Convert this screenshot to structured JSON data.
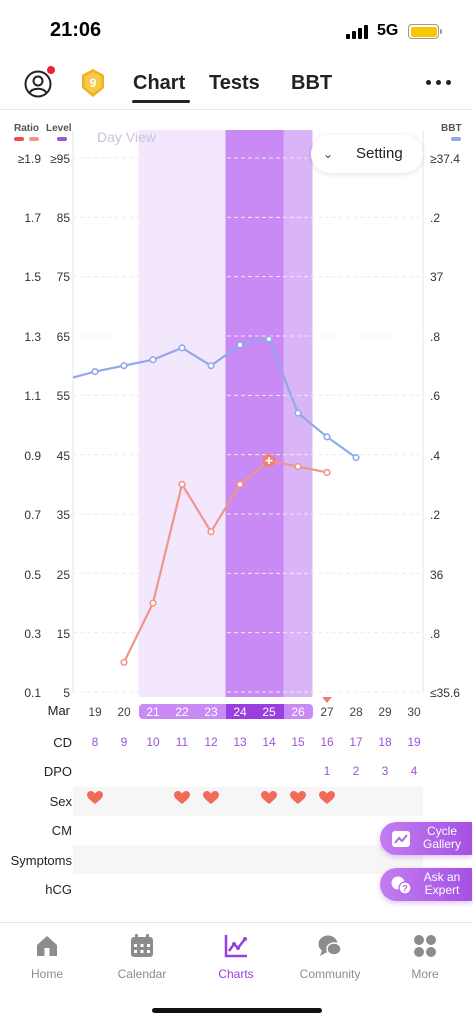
{
  "status_bar": {
    "time": "21:06",
    "network": "5G"
  },
  "top_nav": {
    "tabs": [
      "Chart",
      "Tests",
      "BBT"
    ],
    "active_tab": "Chart",
    "badge_level": "9"
  },
  "axis_heads": {
    "ratio": "Ratio",
    "level": "Level",
    "bbt": "BBT"
  },
  "colors": {
    "ratio": "#f0958a",
    "level": "#9b55d6",
    "bbt": "#8fa9ea",
    "fertile_light": "#f2e7fd",
    "fertile_dark": "#d9b5f7",
    "ovulation": "#c98af5"
  },
  "day_view": "Day View",
  "setting": "Setting",
  "ratio_labels": [
    "≥1.9",
    "1.7",
    "1.5",
    "1.3",
    "1.1",
    "0.9",
    "0.7",
    "0.5",
    "0.3",
    "0.1"
  ],
  "level_labels": [
    "≥95",
    "85",
    "75",
    "65",
    "55",
    "45",
    "35",
    "25",
    "15",
    "5"
  ],
  "bbt_labels": [
    "≥37.4",
    ".2",
    "37",
    ".8",
    ".6",
    ".4",
    ".2",
    "36",
    ".8",
    "≤35.6"
  ],
  "month": "Mar",
  "dates": [
    "19",
    "20",
    "21",
    "22",
    "23",
    "24",
    "25",
    "26",
    "27",
    "28",
    "29",
    "30"
  ],
  "cd": [
    "8",
    "9",
    "10",
    "11",
    "12",
    "13",
    "14",
    "15",
    "16",
    "17",
    "18",
    "19"
  ],
  "dpo": [
    "",
    "",
    "",
    "",
    "",
    "",
    "",
    "",
    "1",
    "2",
    "3",
    "4"
  ],
  "sex": [
    true,
    false,
    false,
    true,
    true,
    false,
    true,
    true,
    true,
    false,
    false,
    false
  ],
  "rows": {
    "cd": "CD",
    "dpo": "DPO",
    "sex": "Sex",
    "cm": "CM",
    "symptoms": "Symptoms",
    "hcg": "hCG"
  },
  "chart_data": {
    "type": "line",
    "categories": [
      "Mar 19",
      "Mar 20",
      "Mar 21",
      "Mar 22",
      "Mar 23",
      "Mar 24",
      "Mar 25",
      "Mar 26",
      "Mar 27",
      "Mar 28",
      "Mar 29",
      "Mar 30"
    ],
    "series": [
      {
        "name": "Level",
        "axis": "left",
        "values": [
          null,
          10,
          20,
          40,
          32,
          40,
          44,
          43,
          42,
          null,
          null,
          null
        ]
      },
      {
        "name": "BBT",
        "axis": "right",
        "values": [
          36.68,
          36.7,
          36.72,
          36.76,
          36.7,
          36.77,
          36.79,
          36.54,
          36.46,
          36.39,
          null,
          null
        ]
      }
    ],
    "ylim_left": [
      5,
      95
    ],
    "ylim_right": [
      35.6,
      37.4
    ],
    "fertile_window": [
      "Mar 21",
      "Mar 26"
    ],
    "peak_days": [
      "Mar 24",
      "Mar 25"
    ],
    "ovulation_day": "Mar 26",
    "grid": true
  },
  "floating_buttons": {
    "gallery": "Cycle Gallery",
    "expert": "Ask an Expert"
  },
  "bottom_nav": [
    {
      "label": "Home",
      "icon": "home-icon",
      "active": false
    },
    {
      "label": "Calendar",
      "icon": "calendar-icon",
      "active": false
    },
    {
      "label": "Charts",
      "icon": "charts-icon",
      "active": true
    },
    {
      "label": "Community",
      "icon": "community-icon",
      "active": false
    },
    {
      "label": "More",
      "icon": "more-grid-icon",
      "active": false
    }
  ]
}
